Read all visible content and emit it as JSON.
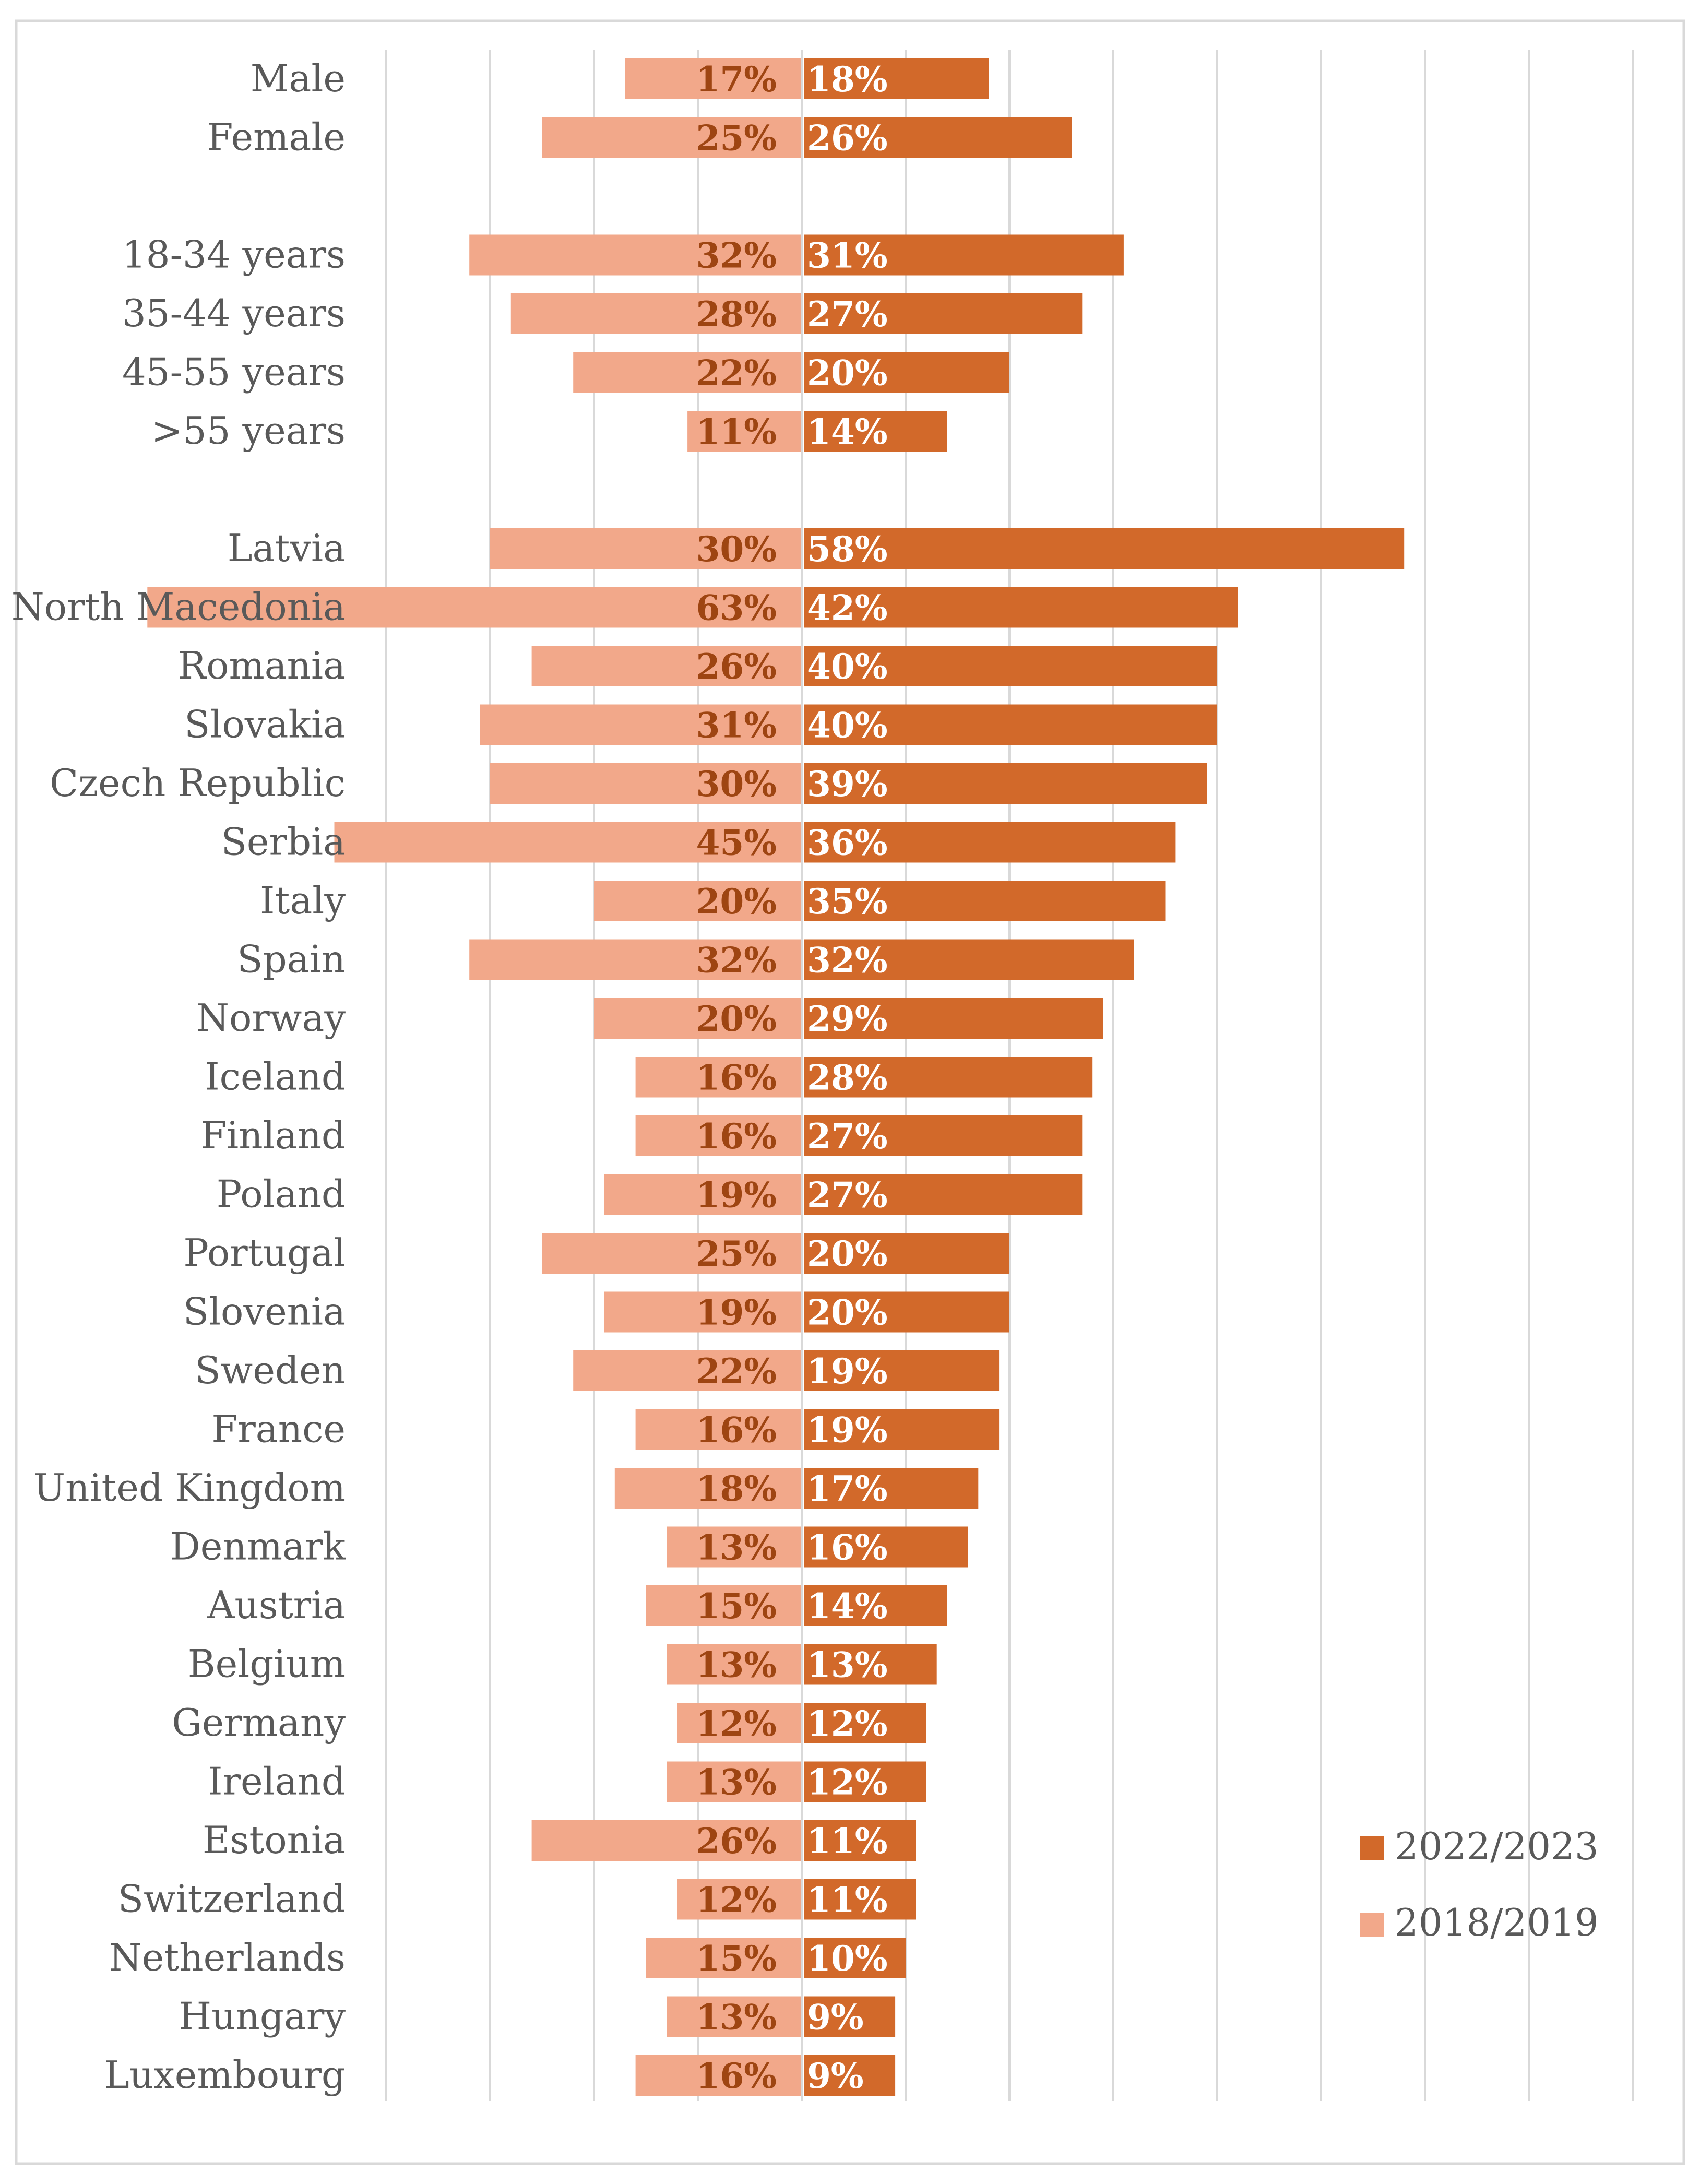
{
  "chart_data": {
    "type": "bar",
    "orientation": "horizontal-diverging",
    "title": "",
    "xlabel": "",
    "ylabel": "",
    "xlim": [
      -40,
      80
    ],
    "grid": true,
    "legend_position": "bottom-right",
    "colors": {
      "2022/2023": "#D2692A",
      "2018/2019": "#F2A88A",
      "label_dark": "#9E4512",
      "label_light": "#ffffff",
      "grid": "#d9d9d9",
      "frame": "#d9d9d9"
    },
    "categories": [
      "Male",
      "Female",
      "",
      "18-34 years",
      "35-44 years",
      "45-55 years",
      ">55 years",
      "",
      "Latvia",
      "North Macedonia",
      "Romania",
      "Slovakia",
      "Czech Republic",
      "Serbia",
      "Italy",
      "Spain",
      "Norway",
      "Iceland",
      "Finland",
      "Poland",
      "Portugal",
      "Slovenia",
      "Sweden",
      "France",
      "United Kingdom",
      "Denmark",
      "Austria",
      "Belgium",
      "Germany",
      "Ireland",
      "Estonia",
      "Switzerland",
      "Netherlands",
      "Hungary",
      "Luxembourg"
    ],
    "series": [
      {
        "name": "2022/2023",
        "values": [
          18,
          26,
          null,
          31,
          27,
          20,
          14,
          null,
          58,
          42,
          40,
          40,
          39,
          36,
          35,
          32,
          29,
          28,
          27,
          27,
          20,
          20,
          19,
          19,
          17,
          16,
          14,
          13,
          12,
          12,
          11,
          11,
          10,
          9,
          9
        ],
        "labels": [
          "18%",
          "26%",
          "",
          "31%",
          "27%",
          "20%",
          "14%",
          "",
          "58%",
          "42%",
          "40%",
          "40%",
          "39%",
          "36%",
          "35%",
          "32%",
          "29%",
          "28%",
          "27%",
          "27%",
          "20%",
          "20%",
          "19%",
          "19%",
          "17%",
          "16%",
          "14%",
          "13%",
          "12%",
          "12%",
          "11%",
          "11%",
          "10%",
          "9%",
          "9%"
        ]
      },
      {
        "name": "2018/2019",
        "values": [
          17,
          25,
          null,
          32,
          28,
          22,
          11,
          null,
          30,
          63,
          26,
          31,
          30,
          45,
          20,
          32,
          20,
          16,
          16,
          19,
          25,
          19,
          22,
          16,
          18,
          13,
          15,
          13,
          12,
          13,
          26,
          12,
          15,
          13,
          16
        ],
        "labels": [
          "17%",
          "25%",
          "",
          "32%",
          "28%",
          "22%",
          "11%",
          "",
          "30%",
          "63%",
          "26%",
          "31%",
          "30%",
          "45%",
          "20%",
          "32%",
          "20%",
          "16%",
          "16%",
          "19%",
          "25%",
          "19%",
          "22%",
          "16%",
          "18%",
          "13%",
          "15%",
          "13%",
          "12%",
          "13%",
          "26%",
          "12%",
          "15%",
          "13%",
          "16%"
        ]
      }
    ]
  }
}
